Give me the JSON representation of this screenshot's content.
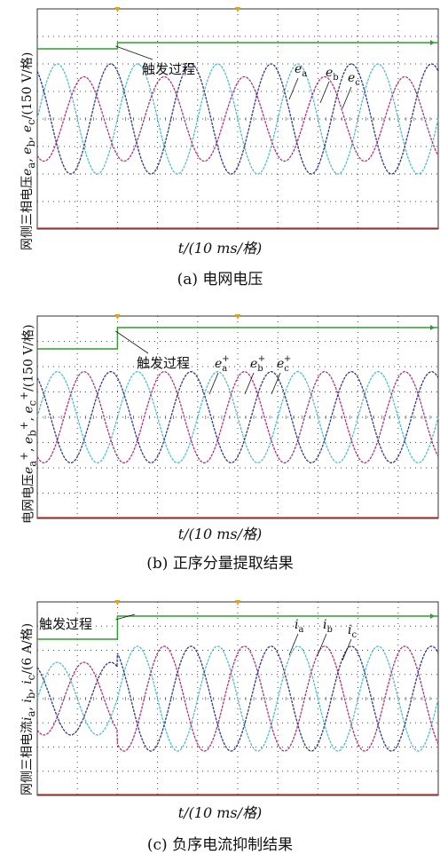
{
  "colors": {
    "a": "#4ec0cc",
    "b": "#b0327c",
    "c": "#2e3a8a",
    "trigger": "#2e9e2e",
    "marker": "#e0a020",
    "grid": "#444444",
    "baseline": "#cc3333"
  },
  "chart_data": [
    {
      "type": "line",
      "caption": "(a) 电网电压",
      "ylabel": "网侧三相电压ea, eb, ec/(150 V/格)",
      "xlabel": "t/(10 ms/格)",
      "x_unit": "ms",
      "y_unit": "V",
      "grid": true,
      "xlim": [
        0,
        100
      ],
      "ylim": [
        -600,
        600
      ],
      "annotation": "触发过程",
      "trigger_time": 20,
      "series": [
        {
          "name": "ea",
          "amplitude_pre": 300,
          "amplitude_post": 300,
          "phase_deg": 0
        },
        {
          "name": "eb",
          "amplitude_pre": 230,
          "amplitude_post": 230,
          "phase_deg": -120
        },
        {
          "name": "ec",
          "amplitude_pre": 300,
          "amplitude_post": 300,
          "phase_deg": 120
        }
      ],
      "frequency_hz": 50
    },
    {
      "type": "line",
      "caption": "(b) 正序分量提取结果",
      "ylabel": "电网电压ea+, eb+, ec+/(150 V/格)",
      "xlabel": "t/(10 ms/格)",
      "x_unit": "ms",
      "y_unit": "V",
      "grid": true,
      "xlim": [
        0,
        100
      ],
      "ylim": [
        -600,
        600
      ],
      "annotation": "触发过程",
      "trigger_time": 20,
      "series": [
        {
          "name": "ea+",
          "amplitude_pre": 270,
          "amplitude_post": 270,
          "phase_deg": 0
        },
        {
          "name": "eb+",
          "amplitude_pre": 270,
          "amplitude_post": 270,
          "phase_deg": -120
        },
        {
          "name": "ec+",
          "amplitude_pre": 270,
          "amplitude_post": 270,
          "phase_deg": 120
        }
      ],
      "frequency_hz": 50
    },
    {
      "type": "line",
      "caption": "(c) 负序电流抑制结果",
      "ylabel": "网侧三相电流ia, ib, ic/(6 A/格)",
      "xlabel": "t/(10 ms/格)",
      "x_unit": "ms",
      "y_unit": "A",
      "grid": true,
      "xlim": [
        0,
        100
      ],
      "ylim": [
        -24,
        24
      ],
      "annotation": "触发过程",
      "trigger_time": 20,
      "series": [
        {
          "name": "ia",
          "amplitude_pre": 9,
          "amplitude_post": 13,
          "phase_deg": 0
        },
        {
          "name": "ib",
          "amplitude_pre": 9,
          "amplitude_post": 13,
          "phase_deg": -120
        },
        {
          "name": "ic",
          "amplitude_pre": 9,
          "amplitude_post": 13,
          "phase_deg": 120
        }
      ],
      "frequency_hz": 50
    }
  ],
  "panels": {
    "a": {
      "ylabel_parts": [
        "网侧三相电压",
        "e",
        "a",
        ", ",
        "e",
        "b",
        ", ",
        "e",
        "c",
        "/(150 V/格)"
      ]
    },
    "b": {
      "ylabel_parts": [
        "电网电压",
        "e",
        "a",
        "+",
        "e",
        "b",
        "+",
        "e",
        "c",
        "+",
        "/(150 V/格)"
      ]
    },
    "c": {
      "ylabel_parts": [
        "网侧三相电流",
        "i",
        "a",
        ", ",
        "i",
        "b",
        ", ",
        "i",
        "c",
        "/(6 A/格)"
      ]
    }
  }
}
